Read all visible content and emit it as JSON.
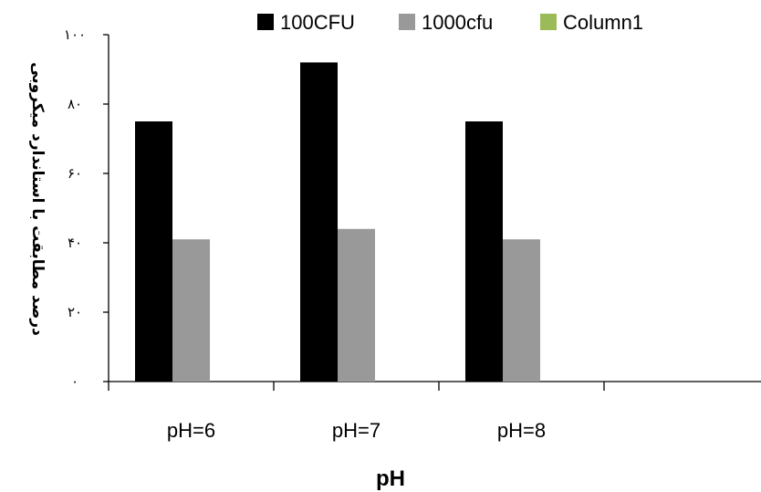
{
  "chart_data": {
    "type": "bar",
    "categories": [
      "pH=6",
      "pH=7",
      "pH=8",
      ""
    ],
    "series": [
      {
        "name": "100CFU",
        "values": [
          75,
          92,
          75,
          null
        ],
        "color": "#000000"
      },
      {
        "name": "1000cfu",
        "values": [
          41,
          44,
          41,
          null
        ],
        "color": "#999999"
      },
      {
        "name": "Column1",
        "values": [
          null,
          null,
          null,
          null
        ],
        "color": "#9bbb59"
      }
    ],
    "xlabel": "pH",
    "ylabel": "درصد مطابقت با استاندارد میکروبی",
    "ylim": [
      0,
      100
    ],
    "yticks": [
      0,
      20,
      40,
      60,
      80,
      100
    ],
    "ytick_labels": [
      "۰",
      "۲۰",
      "۴۰",
      "۶۰",
      "۸۰",
      "۱۰۰"
    ],
    "grid": false,
    "legend_position": "top"
  }
}
